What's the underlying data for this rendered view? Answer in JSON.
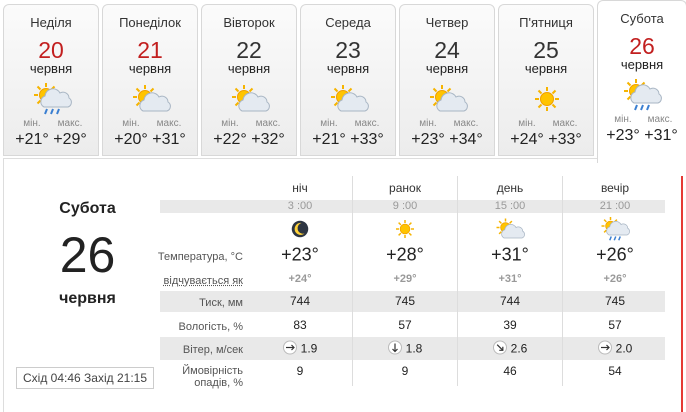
{
  "days": [
    {
      "weekday": "Неділя",
      "date": "20",
      "month": "червня",
      "min_label": "мін.",
      "max_label": "макс.",
      "min": "+21°",
      "max": "+29°"
    },
    {
      "weekday": "Понеділок",
      "date": "21",
      "month": "червня",
      "min_label": "мін.",
      "max_label": "макс.",
      "min": "+20°",
      "max": "+31°"
    },
    {
      "weekday": "Вівторок",
      "date": "22",
      "month": "червня",
      "min_label": "мін.",
      "max_label": "макс.",
      "min": "+22°",
      "max": "+32°"
    },
    {
      "weekday": "Середа",
      "date": "23",
      "month": "червня",
      "min_label": "мін.",
      "max_label": "макс.",
      "min": "+21°",
      "max": "+33°"
    },
    {
      "weekday": "Четвер",
      "date": "24",
      "month": "червня",
      "min_label": "мін.",
      "max_label": "макс.",
      "min": "+23°",
      "max": "+34°"
    },
    {
      "weekday": "П'ятниця",
      "date": "25",
      "month": "червня",
      "min_label": "мін.",
      "max_label": "макс.",
      "min": "+24°",
      "max": "+33°"
    },
    {
      "weekday": "Субота",
      "date": "26",
      "month": "червня",
      "min_label": "мін.",
      "max_label": "макс.",
      "min": "+23°",
      "max": "+31°"
    }
  ],
  "detail": {
    "weekday": "Субота",
    "date": "26",
    "month": "червня",
    "sunrise_label": "Схід",
    "sunrise": "04:46",
    "sunset_label": "Захід",
    "sunset": "21:15",
    "periods": [
      "ніч",
      "ранок",
      "день",
      "вечір"
    ],
    "times": [
      "3 :00",
      "9 :00",
      "15 :00",
      "21 :00"
    ],
    "rows": [
      {
        "label": "Температура, °С",
        "values": [
          "+23°",
          "+28°",
          "+31°",
          "+26°"
        ]
      },
      {
        "label": "відчувається як",
        "values": [
          "+24°",
          "+29°",
          "+31°",
          "+26°"
        ]
      },
      {
        "label": "Тиск, мм",
        "values": [
          "744",
          "745",
          "744",
          "745"
        ]
      },
      {
        "label": "Вологість, %",
        "values": [
          "83",
          "57",
          "39",
          "57"
        ]
      },
      {
        "label": "Вітер, м/сек",
        "values": [
          "1.9",
          "1.8",
          "2.6",
          "2.0"
        ]
      },
      {
        "label": "Ймовірність опадів, %",
        "values": [
          "9",
          "9",
          "46",
          "54"
        ]
      }
    ]
  }
}
